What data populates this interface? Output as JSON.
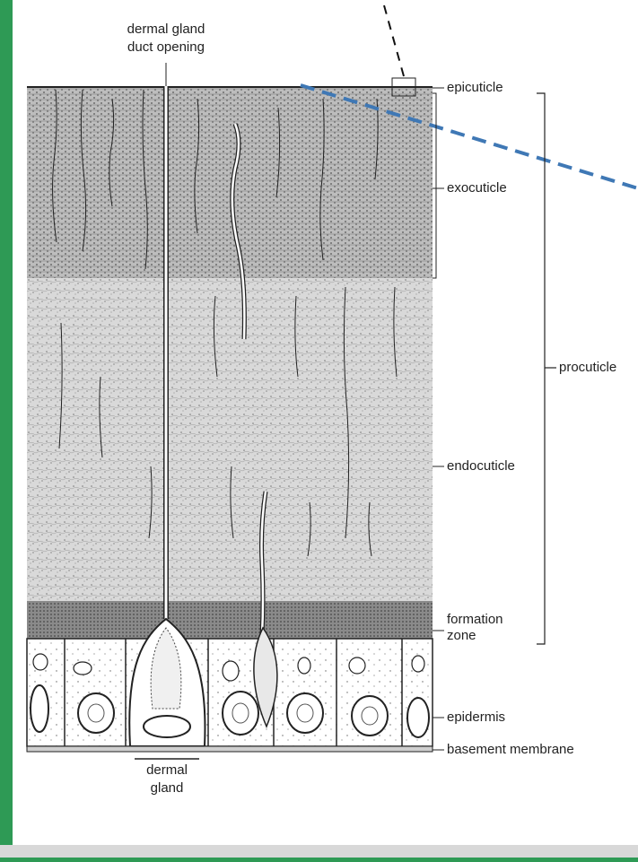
{
  "labels": {
    "dermal_gland_duct_opening_line1": "dermal gland",
    "dermal_gland_duct_opening_line2": "duct opening",
    "epicuticle": "epicuticle",
    "exocuticle": "exocuticle",
    "procuticle": "procuticle",
    "endocuticle": "endocuticle",
    "formation_zone_line1": "formation",
    "formation_zone_line2": "zone",
    "epidermis": "epidermis",
    "basement_membrane": "basement membrane",
    "dermal_gland_line1": "dermal",
    "dermal_gland_line2": "gland"
  },
  "colors": {
    "frame_green": "#2e9a55",
    "panel_white": "#ffffff",
    "ink": "#222222",
    "callout_blue": "#3f78b5"
  }
}
